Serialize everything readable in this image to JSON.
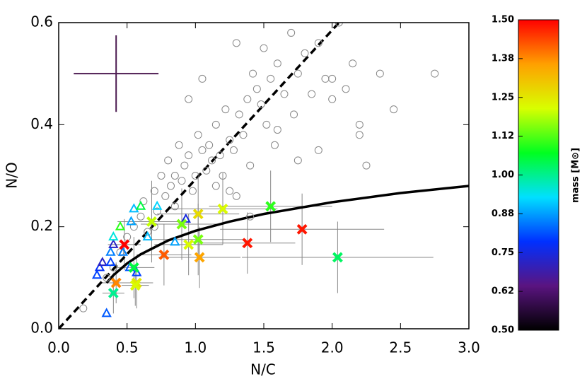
{
  "chart_data": {
    "type": "scatter",
    "xlabel": "N/C",
    "ylabel": "N/O",
    "xlim": [
      0,
      3
    ],
    "ylim": [
      0,
      0.6
    ],
    "xticks": [
      {
        "value": 0,
        "label": "0.0"
      },
      {
        "value": 0.5,
        "label": "0.5"
      },
      {
        "value": 1,
        "label": "1.0"
      },
      {
        "value": 1.5,
        "label": "1.5"
      },
      {
        "value": 2,
        "label": "2.0"
      },
      {
        "value": 2.5,
        "label": "2.5"
      },
      {
        "value": 3,
        "label": "3.0"
      }
    ],
    "yticks": [
      {
        "value": 0,
        "label": "0.0"
      },
      {
        "value": 0.2,
        "label": "0.2"
      },
      {
        "value": 0.4,
        "label": "0.4"
      },
      {
        "value": 0.6,
        "label": "0.6"
      }
    ],
    "series": [
      {
        "marker": "circle",
        "color": "#888888",
        "x": [
          0.18,
          0.35,
          0.4,
          0.45,
          0.5,
          0.55,
          0.6,
          0.62,
          0.65,
          0.7,
          0.72,
          0.75,
          0.78,
          0.8,
          0.82,
          0.85,
          0.88,
          0.9,
          0.92,
          0.95,
          0.98,
          1.0,
          1.02,
          1.05,
          1.08,
          1.1,
          1.12,
          1.15,
          1.18,
          1.2,
          1.22,
          1.25,
          1.28,
          1.3,
          1.32,
          1.35,
          1.38,
          1.4,
          1.42,
          1.45,
          1.48,
          1.5,
          1.52,
          1.55,
          1.58,
          1.6,
          1.65,
          1.7,
          1.72,
          1.75,
          1.8,
          1.85,
          1.9,
          1.95,
          2.0,
          2.05,
          2.1,
          2.15,
          2.2,
          2.25,
          2.35,
          2.45,
          2.75,
          1.05,
          0.95,
          1.3,
          1.6,
          1.75,
          1.9,
          0.7,
          0.85,
          1.15,
          1.4,
          1.25,
          2.0,
          2.2
        ],
        "values": [
          0.04,
          0.1,
          0.12,
          0.15,
          0.18,
          0.2,
          0.22,
          0.25,
          0.19,
          0.27,
          0.23,
          0.3,
          0.26,
          0.33,
          0.28,
          0.3,
          0.36,
          0.29,
          0.32,
          0.34,
          0.27,
          0.3,
          0.38,
          0.35,
          0.31,
          0.36,
          0.33,
          0.4,
          0.34,
          0.3,
          0.43,
          0.37,
          0.35,
          0.56,
          0.42,
          0.38,
          0.45,
          0.32,
          0.5,
          0.47,
          0.44,
          0.55,
          0.4,
          0.49,
          0.36,
          0.52,
          0.46,
          0.58,
          0.42,
          0.5,
          0.54,
          0.46,
          0.56,
          0.49,
          0.45,
          0.6,
          0.47,
          0.52,
          0.4,
          0.32,
          0.5,
          0.43,
          0.5,
          0.49,
          0.45,
          0.26,
          0.39,
          0.33,
          0.35,
          0.2,
          0.24,
          0.28,
          0.22,
          0.27,
          0.49,
          0.38
        ]
      },
      {
        "marker": "triangle",
        "x": [
          0.35,
          0.28,
          0.3,
          0.32,
          0.38,
          0.38,
          0.4,
          0.4,
          0.45,
          0.53,
          0.55,
          0.6,
          0.47,
          0.52,
          0.57,
          0.65,
          0.72,
          0.85,
          0.93
        ],
        "values": [
          0.03,
          0.105,
          0.12,
          0.13,
          0.13,
          0.15,
          0.165,
          0.18,
          0.2,
          0.21,
          0.235,
          0.24,
          0.15,
          0.12,
          0.11,
          0.18,
          0.24,
          0.17,
          0.215
        ],
        "mass": [
          0.82,
          0.8,
          0.78,
          0.72,
          0.8,
          0.85,
          0.72,
          0.95,
          1.1,
          0.88,
          0.9,
          1.05,
          0.85,
          0.82,
          0.8,
          0.9,
          0.92,
          0.88,
          0.75
        ]
      },
      {
        "marker": "cross",
        "x": [
          0.48,
          0.42,
          0.4,
          0.55,
          0.57,
          0.56,
          0.68,
          0.77,
          0.9,
          0.95,
          1.02,
          1.02,
          1.03,
          1.2,
          1.38,
          1.55,
          1.78,
          2.04
        ],
        "values": [
          0.165,
          0.09,
          0.07,
          0.12,
          0.09,
          0.085,
          0.21,
          0.145,
          0.205,
          0.165,
          0.225,
          0.175,
          0.14,
          0.235,
          0.168,
          0.24,
          0.195,
          0.14
        ],
        "mass": [
          1.5,
          1.38,
          1.0,
          1.05,
          1.25,
          1.22,
          1.2,
          1.42,
          1.15,
          1.22,
          1.27,
          1.15,
          1.35,
          1.22,
          1.48,
          1.1,
          1.48,
          1.03
        ],
        "xerr": [
          0.12,
          0.1,
          0.08,
          0.15,
          0.12,
          0.1,
          0.25,
          0.2,
          0.3,
          0.25,
          0.3,
          0.35,
          0.3,
          0.4,
          0.35,
          0.45,
          0.6,
          0.7
        ],
        "yerr": [
          0.05,
          0.04,
          0.04,
          0.06,
          0.05,
          0.04,
          0.08,
          0.06,
          0.07,
          0.06,
          0.08,
          0.07,
          0.06,
          0.07,
          0.06,
          0.07,
          0.07,
          0.07
        ]
      }
    ],
    "lines": [
      {
        "style": "dashed",
        "color": "#000000",
        "x": [
          0,
          2.05
        ],
        "values": [
          0,
          0.6
        ]
      },
      {
        "style": "solid",
        "color": "#000000",
        "x": [
          0.35,
          0.4,
          0.5,
          0.6,
          0.8,
          1.0,
          1.25,
          1.5,
          2.0,
          2.5,
          3.0
        ],
        "values": [
          0.09,
          0.105,
          0.128,
          0.146,
          0.173,
          0.192,
          0.21,
          0.225,
          0.248,
          0.266,
          0.28
        ]
      }
    ],
    "error_example": {
      "x": 0.42,
      "value": 0.5,
      "xerr": 0.31,
      "yerr": 0.075,
      "color": "#4b1a50"
    },
    "colorbar": {
      "label": "mass [M⊙]",
      "clim": [
        0.5,
        1.5
      ],
      "ticks": [
        {
          "value": 0.5,
          "label": "0.50"
        },
        {
          "value": 0.625,
          "label": "0.62"
        },
        {
          "value": 0.75,
          "label": "0.75"
        },
        {
          "value": 0.875,
          "label": "0.88"
        },
        {
          "value": 1.0,
          "label": "1.00"
        },
        {
          "value": 1.125,
          "label": "1.12"
        },
        {
          "value": 1.25,
          "label": "1.25"
        },
        {
          "value": 1.375,
          "label": "1.38"
        },
        {
          "value": 1.5,
          "label": "1.50"
        }
      ],
      "colormap": [
        "#000000",
        "#5a1480",
        "#0030ff",
        "#00e0ff",
        "#00ff20",
        "#d8ff00",
        "#ffa000",
        "#ff0000"
      ]
    }
  }
}
